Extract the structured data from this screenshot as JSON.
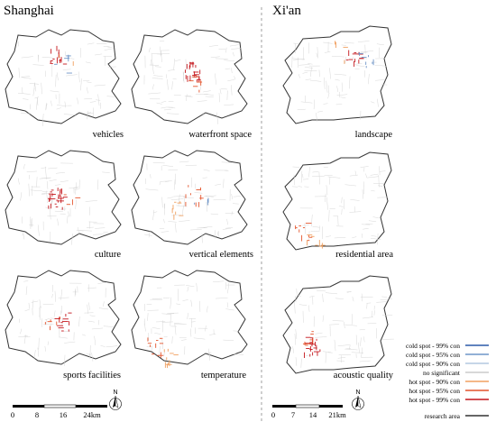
{
  "titles": {
    "shanghai": "Shanghai",
    "xian": "Xi'an"
  },
  "shanghai_maps": [
    {
      "label": "vehicles",
      "hotspots": [
        {
          "level": "hot99",
          "n": 14
        },
        {
          "level": "cold95",
          "n": 6
        },
        {
          "level": "hot90",
          "n": 2
        }
      ]
    },
    {
      "label": "waterfront space",
      "hotspots": [
        {
          "level": "hot99",
          "n": 22
        },
        {
          "level": "hot95",
          "n": 6
        }
      ]
    },
    {
      "label": "culture",
      "hotspots": [
        {
          "level": "hot99",
          "n": 26
        },
        {
          "level": "hot95",
          "n": 4
        }
      ]
    },
    {
      "label": "vertical elements",
      "hotspots": [
        {
          "level": "hot95",
          "n": 10
        },
        {
          "level": "hot90",
          "n": 8
        },
        {
          "level": "cold95",
          "n": 3
        }
      ]
    },
    {
      "label": "sports facilities",
      "hotspots": [
        {
          "level": "hot99",
          "n": 12
        },
        {
          "level": "hot95",
          "n": 6
        }
      ]
    },
    {
      "label": "temperature",
      "hotspots": [
        {
          "level": "hot95",
          "n": 10
        },
        {
          "level": "hot90",
          "n": 10
        }
      ]
    }
  ],
  "xian_maps": [
    {
      "label": "landscape",
      "hotspots": [
        {
          "level": "hot99",
          "n": 12
        },
        {
          "level": "cold95",
          "n": 8
        },
        {
          "level": "hot90",
          "n": 4
        }
      ]
    },
    {
      "label": "residential area",
      "hotspots": [
        {
          "level": "hot95",
          "n": 10
        },
        {
          "level": "hot90",
          "n": 8
        }
      ]
    },
    {
      "label": "acoustic quality",
      "hotspots": [
        {
          "level": "hot99",
          "n": 20
        },
        {
          "level": "hot95",
          "n": 8
        }
      ]
    }
  ],
  "scale_bars": [
    {
      "ticks": [
        "0",
        "8",
        "16",
        "24km"
      ]
    },
    {
      "ticks": [
        "0",
        "7",
        "14",
        "21km"
      ]
    }
  ],
  "north_arrow": {
    "label": "N",
    "icon": "north-arrow-icon"
  },
  "legend": {
    "items": [
      {
        "label": "cold spot - 99% con",
        "key": "cold99"
      },
      {
        "label": "cold spot - 95% con",
        "key": "cold95"
      },
      {
        "label": "cold spot - 90% con",
        "key": "cold90"
      },
      {
        "label": "no significant",
        "key": "none"
      },
      {
        "label": "hot spot - 90% con",
        "key": "hot90"
      },
      {
        "label": "hot spot - 95% con",
        "key": "hot95"
      },
      {
        "label": "hot spot - 99% con",
        "key": "hot99"
      }
    ],
    "research_area": "research area"
  },
  "colors": {
    "cold99": "#2b5aa8",
    "cold95": "#6f95c8",
    "cold90": "#b4c8e0",
    "none": "#cccccc",
    "hot90": "#f0a060",
    "hot95": "#e4542c",
    "hot99": "#c4161c",
    "outline": "#333333",
    "divider": "#888888"
  }
}
